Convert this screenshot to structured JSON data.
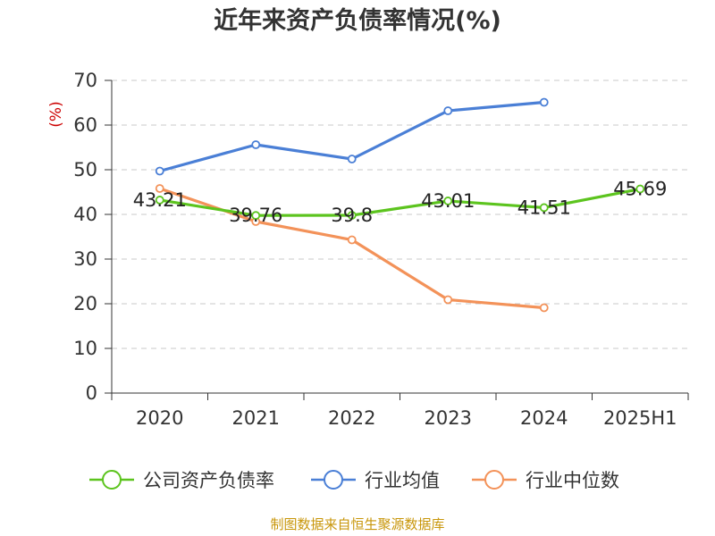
{
  "chart_data": {
    "type": "line",
    "title": "近年来资产负债率情况(%)",
    "ylabel": "(%)",
    "xlabel": "",
    "categories": [
      "2020",
      "2021",
      "2022",
      "2023",
      "2024",
      "2025H1"
    ],
    "ylim": [
      0,
      70
    ],
    "yticks": [
      0,
      10,
      20,
      30,
      40,
      50,
      60,
      70
    ],
    "grid": true,
    "legend_position": "bottom",
    "series": [
      {
        "name": "公司资产负债率",
        "color": "#5cc41e",
        "values": [
          43.21,
          39.76,
          39.8,
          43.01,
          41.51,
          45.69
        ],
        "labels": [
          "43.21",
          "39.76",
          "39.8",
          "43.01",
          "41.51",
          "45.69"
        ]
      },
      {
        "name": "行业均值",
        "color": "#4a7fd6",
        "values": [
          49.7,
          55.6,
          52.4,
          63.2,
          65.1,
          null
        ]
      },
      {
        "name": "行业中位数",
        "color": "#f39259",
        "values": [
          45.8,
          38.4,
          34.3,
          20.9,
          19.1,
          null
        ]
      }
    ]
  },
  "source": "制图数据来自恒生聚源数据库"
}
